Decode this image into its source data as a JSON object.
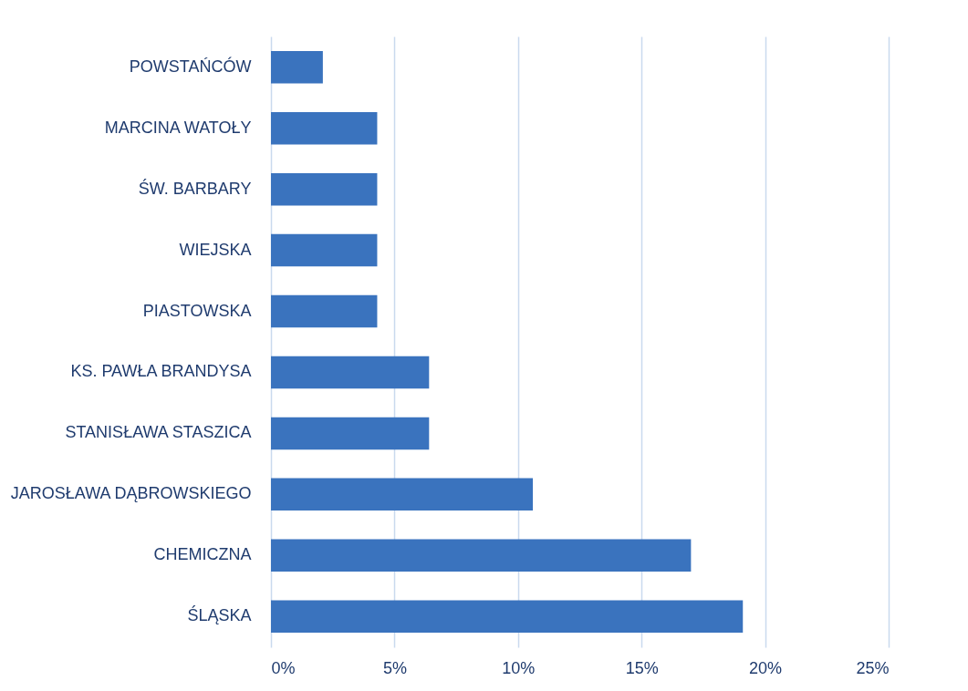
{
  "chart_data": {
    "type": "bar",
    "orientation": "horizontal",
    "categories": [
      "POWSTAŃCÓW",
      "MARCINA WATOŁY",
      "ŚW. BARBARY",
      "WIEJSKA",
      "PIASTOWSKA",
      "KS. PAWŁA BRANDYSA",
      "STANISŁAWA STASZICA",
      "JAROSŁAWA DĄBROWSKIEGO",
      "CHEMICZNA",
      "ŚLĄSKA"
    ],
    "values": [
      2.1,
      4.3,
      4.3,
      4.3,
      4.3,
      6.4,
      6.4,
      10.6,
      17.0,
      19.1
    ],
    "color": "#3a73be",
    "xlim": [
      0,
      25
    ],
    "xticks": [
      {
        "value": 0,
        "label": "0%"
      },
      {
        "value": 5,
        "label": "5%"
      },
      {
        "value": 10,
        "label": "10%"
      },
      {
        "value": 15,
        "label": "15%"
      },
      {
        "value": 20,
        "label": "20%"
      },
      {
        "value": 25,
        "label": "25%"
      }
    ],
    "grid": "x"
  }
}
